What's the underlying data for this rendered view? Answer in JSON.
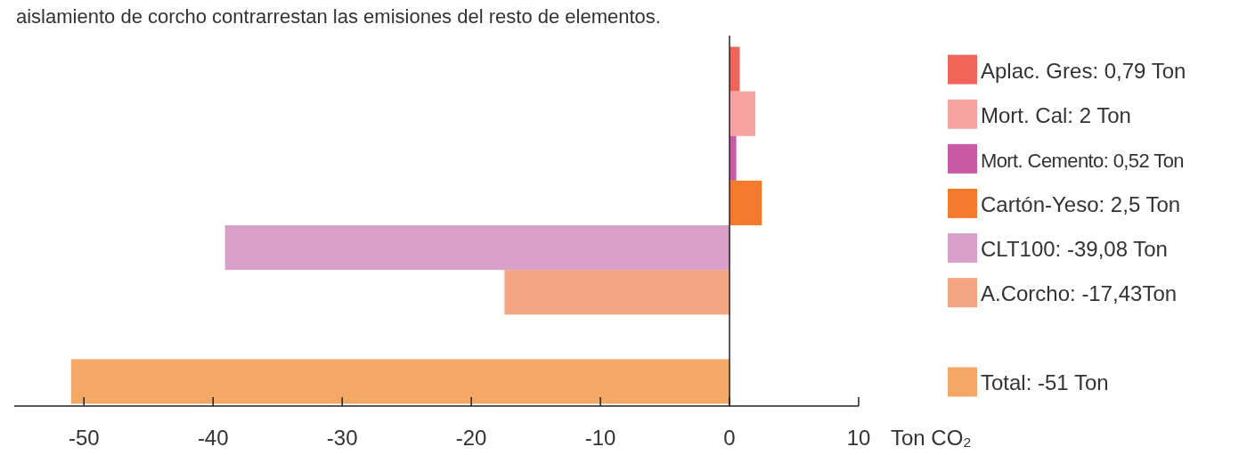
{
  "chart_data": {
    "type": "bar",
    "orientation": "horizontal",
    "stacked": true,
    "annotations": [
      "aislamiento de corcho contrarrestan las emisiones del resto de elementos."
    ],
    "categories": [
      null,
      null,
      null,
      null,
      null,
      null,
      null,
      null
    ],
    "series": [
      {
        "name": "Aplac. Gres: 0,79 Ton",
        "color": "#f0645a",
        "values": [
          0.79,
          null,
          null,
          null,
          null,
          null,
          null,
          null
        ]
      },
      {
        "name": "Mort. Cal: 2 Ton",
        "color": "#f6a3a2",
        "values": [
          null,
          2,
          null,
          null,
          null,
          null,
          null,
          null
        ]
      },
      {
        "name": "Mort. Cemento: 0,52 Ton",
        "color": "#c95aa4",
        "values": [
          null,
          null,
          0.52,
          null,
          null,
          null,
          null,
          null
        ]
      },
      {
        "name": "Cartón-Yeso: 2,5 Ton",
        "color": "#f47a2e",
        "values": [
          null,
          null,
          null,
          2.5,
          null,
          null,
          null,
          null
        ]
      },
      {
        "name": "CLT100: -39,08 Ton",
        "color": "#d8a0c8",
        "values": [
          null,
          null,
          null,
          null,
          -39.08,
          null,
          null,
          null
        ]
      },
      {
        "name": "A.Corcho: -17,43Ton",
        "color": "#f4a583",
        "values": [
          null,
          null,
          null,
          null,
          null,
          -17.43,
          null,
          null
        ]
      },
      {
        "name": "Total: -51 Ton",
        "color": "#f5a865",
        "values": [
          null,
          null,
          null,
          null,
          null,
          null,
          null,
          -51
        ]
      }
    ],
    "xlim": [
      -55.4,
      10
    ],
    "xticks": [
      -50,
      -40,
      -30,
      -20,
      -10,
      0,
      10
    ],
    "xlabel": "Ton CO₂",
    "legend": "right"
  }
}
